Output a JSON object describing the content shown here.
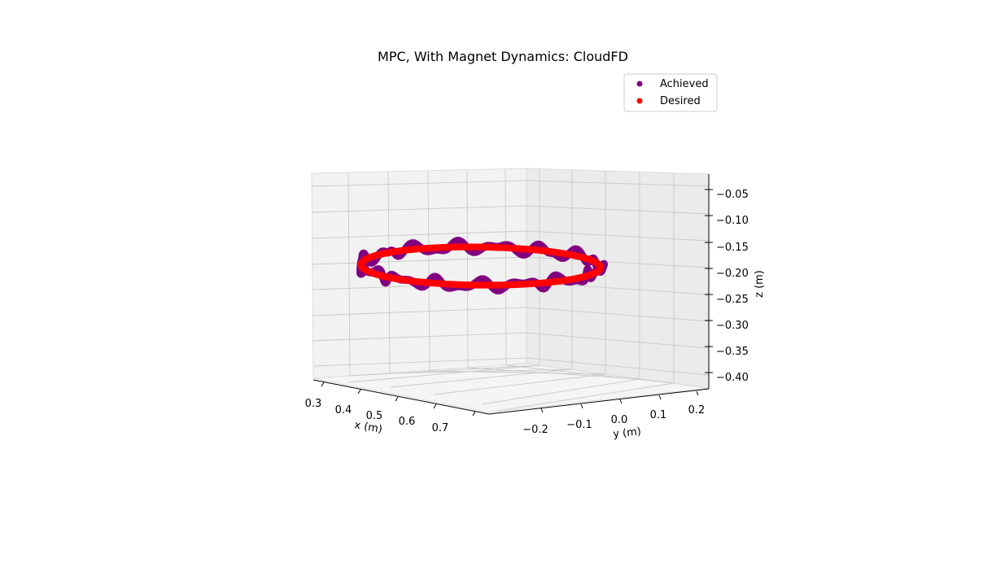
{
  "chart_data": {
    "type": "scatter",
    "title": "MPC, With Magnet Dynamics: CloudFD",
    "xlabel": "x (m)",
    "ylabel": "y (m)",
    "zlabel": "z (m)",
    "x_ticks": [
      "0.3",
      "0.4",
      "0.5",
      "0.6",
      "0.7"
    ],
    "y_ticks": [
      "−0.2",
      "−0.1",
      "0.0",
      "0.1",
      "0.2"
    ],
    "z_ticks": [
      "−0.05",
      "−0.10",
      "−0.15",
      "−0.20",
      "−0.25",
      "−0.30",
      "−0.35",
      "−0.40"
    ],
    "xlim": [
      0.28,
      0.76
    ],
    "ylim": [
      -0.26,
      0.24
    ],
    "zlim": [
      -0.42,
      -0.03
    ],
    "grid": true,
    "legend": "top-right",
    "series": [
      {
        "name": "Achieved",
        "color": "#800080",
        "marker": "circle",
        "trajectory": {
          "shape": "circle",
          "center_x": 0.5,
          "center_y": 0.0,
          "radius": 0.2,
          "z_mean": -0.215,
          "z_noise_amplitude": 0.012
        }
      },
      {
        "name": "Desired",
        "color": "#ff0000",
        "marker": "circle",
        "trajectory": {
          "shape": "circle",
          "center_x": 0.5,
          "center_y": 0.0,
          "radius": 0.2,
          "z_mean": -0.215,
          "z_noise_amplitude": 0
        }
      }
    ]
  }
}
